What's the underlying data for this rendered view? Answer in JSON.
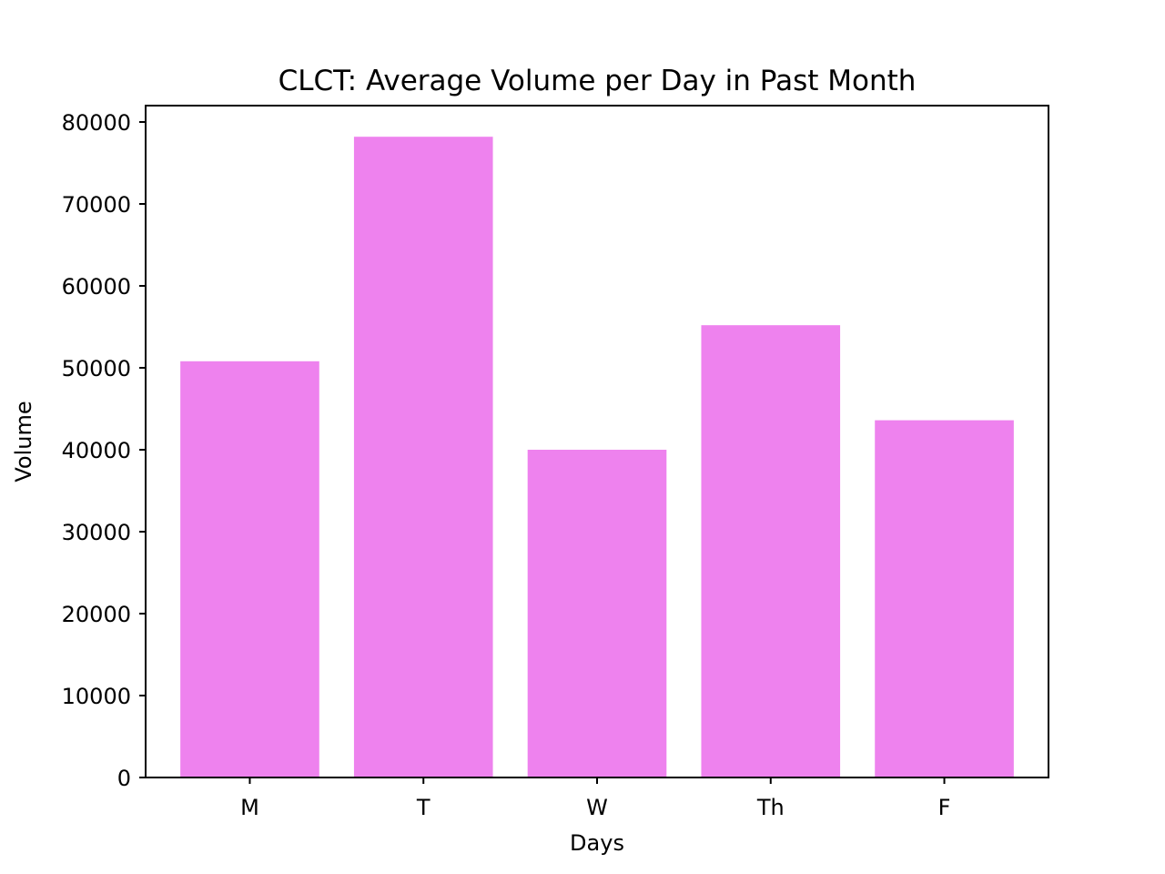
{
  "chart_data": {
    "type": "bar",
    "title": "CLCT: Average Volume per Day in Past Month",
    "xlabel": "Days",
    "ylabel": "Volume",
    "categories": [
      "M",
      "T",
      "W",
      "Th",
      "F"
    ],
    "values": [
      50800,
      78200,
      40000,
      55200,
      43600
    ],
    "ylim": [
      0,
      82000
    ],
    "yticks": [
      0,
      10000,
      20000,
      30000,
      40000,
      50000,
      60000,
      70000,
      80000
    ],
    "bar_color": "#ee82ee",
    "grid": false,
    "legend": "none"
  }
}
